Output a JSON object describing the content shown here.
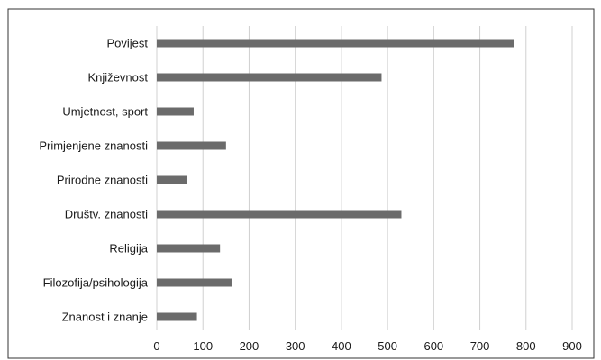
{
  "chart_data": {
    "type": "bar",
    "orientation": "horizontal",
    "categories": [
      "Povijest",
      "Književnost",
      "Umjetnost, sport",
      "Primjenjene znanosti",
      "Prirodne znanosti",
      "Društv. znanosti",
      "Religija",
      "Filozofija/psihologija",
      "Znanost i znanje"
    ],
    "values": [
      775,
      487,
      80,
      150,
      65,
      530,
      137,
      162,
      87
    ],
    "xlim": [
      0,
      900
    ],
    "xticks": [
      0,
      100,
      200,
      300,
      400,
      500,
      600,
      700,
      800,
      900
    ],
    "grid": "vertical",
    "colors": {
      "bar": "#6b6b6b",
      "grid": "#d0d0d0",
      "frame": "#333333"
    }
  }
}
